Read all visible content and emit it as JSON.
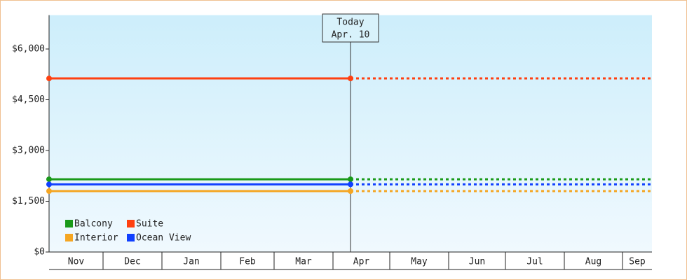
{
  "chart_data": {
    "type": "line",
    "categories": [
      "Nov",
      "Dec",
      "Jan",
      "Feb",
      "Mar",
      "Apr",
      "May",
      "Jun",
      "Jul",
      "Aug",
      "Sep"
    ],
    "today": {
      "title": "Today",
      "label": "Apr. 10"
    },
    "series": [
      {
        "name": "Balcony",
        "color": "#1a9a1a",
        "value": 2150
      },
      {
        "name": "Suite",
        "color": "#ff4010",
        "value": 5130
      },
      {
        "name": "Interior",
        "color": "#f5a623",
        "value": 1800
      },
      {
        "name": "Ocean View",
        "color": "#1040ff",
        "value": 2000
      }
    ],
    "ylim": [
      0,
      7000
    ],
    "yticks": [
      {
        "value": 0,
        "label": "$0"
      },
      {
        "value": 1500,
        "label": "$1,500"
      },
      {
        "value": 3000,
        "label": "$3,000"
      },
      {
        "value": 4500,
        "label": "$4,500"
      },
      {
        "value": 6000,
        "label": "$6,000"
      }
    ]
  }
}
